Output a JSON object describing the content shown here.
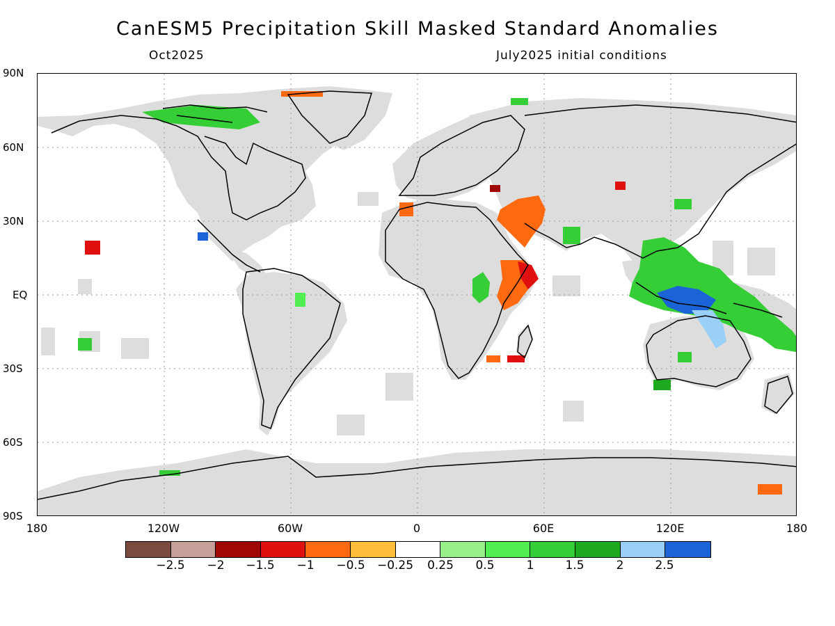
{
  "title": "CanESM5 Precipitation Skill Masked Standard Anomalies",
  "subtitle_left": "Oct2025",
  "subtitle_right": "July2025 initial conditions",
  "lat_labels": [
    "90N",
    "60N",
    "30N",
    "EQ",
    "30S",
    "60S",
    "90S"
  ],
  "lon_labels": [
    "180",
    "120W",
    "60W",
    "0",
    "60E",
    "120E",
    "180"
  ],
  "colorbar": {
    "colors": [
      "#7a4a3e",
      "#c8a09a",
      "#a00808",
      "#e01010",
      "#ff6a10",
      "#ffbe3a",
      "#ffffff",
      "#98f088",
      "#50ee50",
      "#36ce36",
      "#1eaa1e",
      "#9ad0f8",
      "#1a64d8"
    ],
    "labels": [
      "−2.5",
      "−2",
      "−1.5",
      "−1",
      "−0.5",
      "−0.25",
      "0.25",
      "0.5",
      "1",
      "1.5",
      "2",
      "2.5"
    ]
  },
  "map": {
    "land_mask_color": "#dddddd",
    "ocean_color": "#ffffff",
    "coastline_color": "#000000",
    "gridline_color": "#999999"
  }
}
